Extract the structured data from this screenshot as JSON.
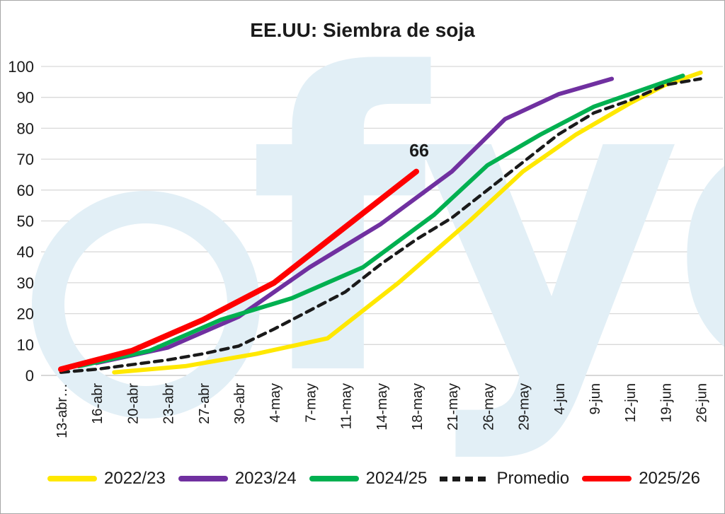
{
  "title": "EE.UU: Siembra de soja",
  "watermark": {
    "text": "fyo",
    "color": "#e2eff6"
  },
  "annotation": {
    "text": "66",
    "series": "2025/26",
    "category_index": 21,
    "value": 66
  },
  "legend": {
    "labels": [
      "2022/23",
      "2023/24",
      "2024/25",
      "Promedio",
      "2025/26"
    ]
  },
  "chart_data": {
    "type": "line",
    "title": "EE.UU: Siembra de soja",
    "xlabel": "",
    "ylabel": "",
    "ylim": [
      0,
      100
    ],
    "grid": "horizontal",
    "legend_position": "bottom",
    "y_ticks": [
      0,
      10,
      20,
      30,
      40,
      50,
      60,
      70,
      80,
      90,
      100
    ],
    "x_axis": {
      "total_categories": 37,
      "label_category_indexes": [
        1,
        3,
        5,
        7,
        9,
        11,
        13,
        15,
        17,
        19,
        21,
        23,
        25,
        27,
        29,
        31,
        33,
        35,
        37
      ],
      "labels": [
        "13-abr…",
        "16-abr",
        "20-abr",
        "23-abr",
        "27-abr",
        "30-abr",
        "4-may",
        "7-may",
        "11-may",
        "14-may",
        "18-may",
        "21-may",
        "26-may",
        "29-may",
        "4-jun",
        "9-jun",
        "12-jun",
        "19-jun",
        "26-jun"
      ]
    },
    "series": [
      {
        "name": "2022/23",
        "color": "#ffe800",
        "dashed": false,
        "width": 6,
        "points": [
          [
            4,
            1
          ],
          [
            8,
            3
          ],
          [
            12,
            7
          ],
          [
            16,
            12
          ],
          [
            20,
            30
          ],
          [
            24,
            50
          ],
          [
            27,
            66
          ],
          [
            30,
            78
          ],
          [
            33,
            88
          ],
          [
            35,
            94
          ],
          [
            37,
            98
          ]
        ]
      },
      {
        "name": "2023/24",
        "color": "#7030a0",
        "dashed": false,
        "width": 6,
        "points": [
          [
            3,
            4
          ],
          [
            7,
            9
          ],
          [
            11,
            19
          ],
          [
            15,
            35
          ],
          [
            19,
            49
          ],
          [
            23,
            66
          ],
          [
            26,
            83
          ],
          [
            29,
            91
          ],
          [
            32,
            96
          ]
        ]
      },
      {
        "name": "2024/25",
        "color": "#00b050",
        "dashed": false,
        "width": 6,
        "points": [
          [
            2,
            3
          ],
          [
            6,
            8
          ],
          [
            10,
            18
          ],
          [
            14,
            25
          ],
          [
            18,
            35
          ],
          [
            22,
            52
          ],
          [
            25,
            68
          ],
          [
            28,
            78
          ],
          [
            31,
            87
          ],
          [
            34,
            93
          ],
          [
            36,
            97
          ]
        ]
      },
      {
        "name": "Promedio",
        "color": "#1a1a1a",
        "dashed": true,
        "width": 4.5,
        "points": [
          [
            1,
            1
          ],
          [
            3,
            2
          ],
          [
            5,
            3.5
          ],
          [
            7,
            5
          ],
          [
            9,
            7
          ],
          [
            11,
            9.5
          ],
          [
            13,
            15
          ],
          [
            15,
            21
          ],
          [
            17,
            27
          ],
          [
            19,
            36
          ],
          [
            21,
            44
          ],
          [
            23,
            51
          ],
          [
            25,
            60
          ],
          [
            27,
            69
          ],
          [
            29,
            78
          ],
          [
            31,
            85
          ],
          [
            33,
            89
          ],
          [
            35,
            94
          ],
          [
            37,
            96
          ]
        ]
      },
      {
        "name": "2025/26",
        "color": "#fe0000",
        "dashed": false,
        "width": 8,
        "points": [
          [
            1,
            2
          ],
          [
            5,
            8
          ],
          [
            9,
            18
          ],
          [
            13,
            30
          ],
          [
            17,
            48
          ],
          [
            21,
            66
          ]
        ]
      }
    ]
  }
}
